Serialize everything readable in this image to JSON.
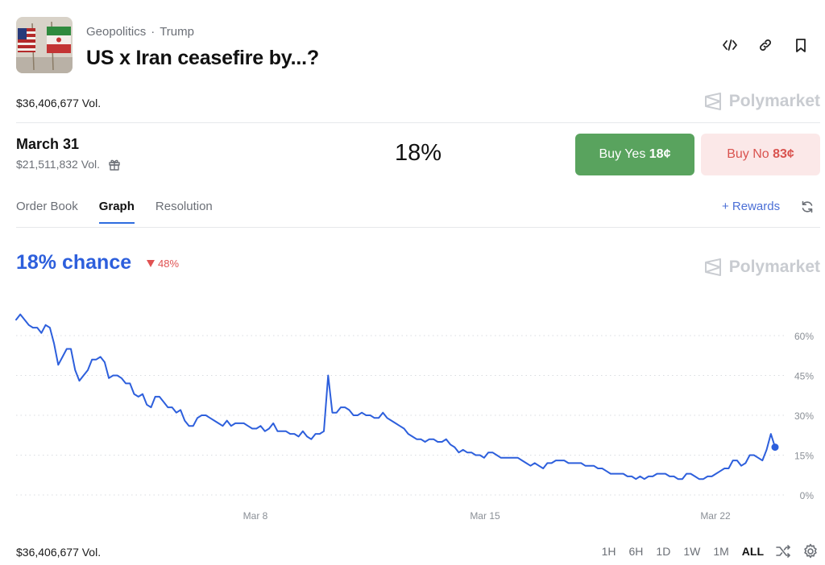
{
  "header": {
    "category": "Geopolitics",
    "separator": "·",
    "tag": "Trump",
    "title": "US x Iran ceasefire by...?",
    "total_volume": "$36,406,677 Vol.",
    "brand": "Polymarket"
  },
  "market": {
    "date": "March 31",
    "volume": "$21,511,832 Vol.",
    "percent": "18%",
    "buy_yes_label": "Buy Yes",
    "buy_yes_price": "18¢",
    "buy_no_label": "Buy No",
    "buy_no_price": "83¢"
  },
  "tabs": [
    {
      "label": "Order Book"
    },
    {
      "label": "Graph"
    },
    {
      "label": "Resolution"
    }
  ],
  "rewards_label": "+ Rewards",
  "graph": {
    "chance": "18% chance",
    "delta": "48%",
    "brand": "Polymarket"
  },
  "colors": {
    "line": "#2d5fdc",
    "yes": "#59a35e",
    "no": "#d9534f",
    "down": "#e05252"
  },
  "chart_data": {
    "type": "line",
    "x_ticks": [
      "Mar 8",
      "Mar 15",
      "Mar 22"
    ],
    "y_ticks": [
      "0%",
      "15%",
      "30%",
      "45%",
      "60%"
    ],
    "ylim": [
      0,
      70
    ],
    "grid": true,
    "series": [
      {
        "values": [
          66,
          68,
          66,
          64,
          63,
          63,
          61,
          64,
          63,
          57,
          49,
          52,
          55,
          55,
          47,
          43,
          45,
          47,
          51,
          51,
          52,
          50,
          44,
          45,
          45,
          44,
          42,
          42,
          38,
          37,
          38,
          34,
          33,
          37,
          37,
          35,
          33,
          33,
          31,
          32,
          28,
          26,
          26,
          29,
          30,
          30,
          29,
          28,
          27,
          26,
          28,
          26,
          27,
          27,
          27,
          26,
          25,
          25,
          26,
          24,
          25,
          27,
          24,
          24,
          24,
          23,
          23,
          22,
          24,
          22,
          21,
          23,
          23,
          24,
          45,
          31,
          31,
          33,
          33,
          32,
          30,
          30,
          31,
          30,
          30,
          29,
          29,
          31,
          29,
          28,
          27,
          26,
          25,
          23,
          22,
          21,
          21,
          20,
          21,
          21,
          20,
          20,
          21,
          19,
          18,
          16,
          17,
          16,
          16,
          15,
          15,
          14,
          16,
          16,
          15,
          14,
          14,
          14,
          14,
          14,
          13,
          12,
          11,
          12,
          11,
          10,
          12,
          12,
          13,
          13,
          13,
          12,
          12,
          12,
          12,
          11,
          11,
          11,
          10,
          10,
          9,
          8,
          8,
          8,
          8,
          7,
          7,
          6,
          7,
          6,
          7,
          7,
          8,
          8,
          8,
          7,
          7,
          6,
          6,
          8,
          8,
          7,
          6,
          6,
          7,
          7,
          8,
          9,
          10,
          10,
          13,
          13,
          11,
          12,
          15,
          15,
          14,
          13,
          17,
          23,
          18
        ]
      }
    ]
  }
}
